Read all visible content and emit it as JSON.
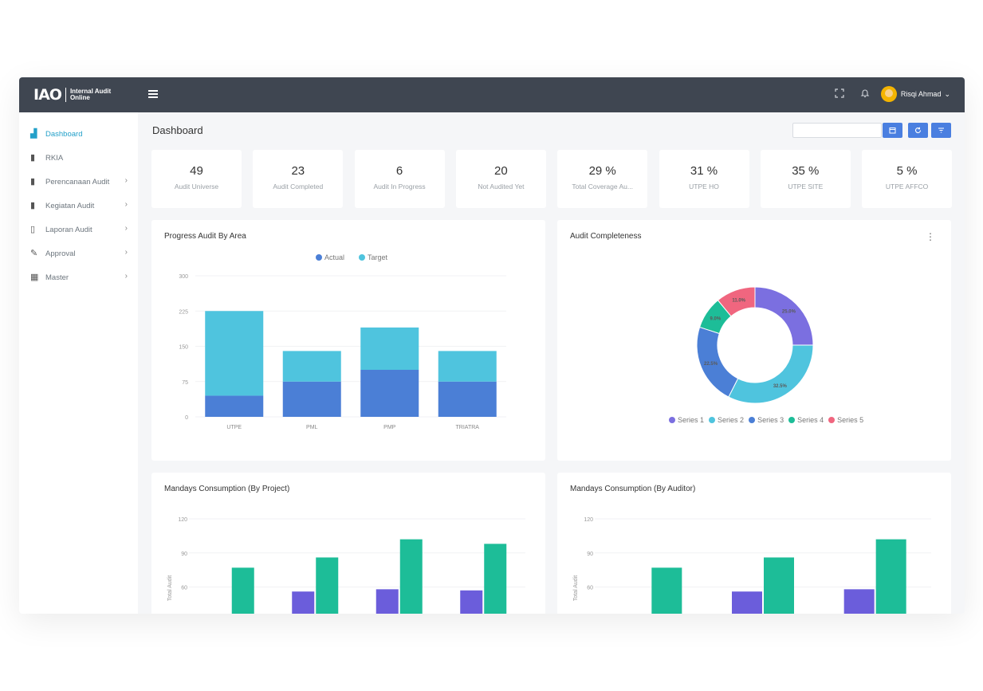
{
  "brand": {
    "mark": "IAO",
    "line1": "Internal Audit",
    "line2": "Online"
  },
  "topbar": {
    "icons": [
      "fullscreen-icon",
      "bell-icon"
    ],
    "user_name": "Risqi Ahmad",
    "user_chevron": "⌄"
  },
  "sidebar": {
    "items": [
      {
        "label": "Dashboard",
        "icon": "chart-area-icon",
        "active": true,
        "has_children": false
      },
      {
        "label": "RKIA",
        "icon": "file-icon",
        "active": false,
        "has_children": false
      },
      {
        "label": "Perencanaan Audit",
        "icon": "file-alt-icon",
        "active": false,
        "has_children": true
      },
      {
        "label": "Kegiatan Audit",
        "icon": "file-image-icon",
        "active": false,
        "has_children": true
      },
      {
        "label": "Laporan Audit",
        "icon": "file-text-icon",
        "active": false,
        "has_children": true
      },
      {
        "label": "Approval",
        "icon": "signature-icon",
        "active": false,
        "has_children": true
      },
      {
        "label": "Master",
        "icon": "grid-icon",
        "active": false,
        "has_children": true
      }
    ]
  },
  "page": {
    "title": "Dashboard",
    "date_placeholder": "",
    "buttons": [
      "calendar-icon",
      "refresh-icon",
      "filter-icon"
    ]
  },
  "stats": [
    {
      "value": "49",
      "label": "Audit Universe"
    },
    {
      "value": "23",
      "label": "Audit Completed"
    },
    {
      "value": "6",
      "label": "Audit In Progress"
    },
    {
      "value": "20",
      "label": "Not Audited Yet"
    },
    {
      "value": "29 %",
      "label": "Total Coverage Au..."
    },
    {
      "value": "31 %",
      "label": "UTPE HO"
    },
    {
      "value": "35 %",
      "label": "UTPE SITE"
    },
    {
      "value": "5 %",
      "label": "UTPE AFFCO"
    }
  ],
  "colors": {
    "actual": "#4b7fd6",
    "target": "#4fc4de",
    "purple": "#6b5ddb",
    "green": "#1dbd98",
    "pink": "#f0667f",
    "topbar": "#3f4651",
    "active": "#23a0c9"
  },
  "chart_data": [
    {
      "type": "bar",
      "title": "Progress Audit By Area",
      "categories": [
        "UTPE",
        "PML",
        "PMP",
        "TRIATRA"
      ],
      "series": [
        {
          "name": "Actual",
          "values": [
            45,
            75,
            100,
            75
          ]
        },
        {
          "name": "Target",
          "values": [
            180,
            65,
            90,
            65
          ]
        }
      ],
      "stacked": true,
      "ylim": [
        0,
        300
      ],
      "yticks": [
        "300",
        "225",
        "150",
        "75",
        "0"
      ],
      "legend": "top"
    },
    {
      "type": "pie",
      "title": "Audit Completeness",
      "donut": true,
      "series": [
        {
          "name": "Series 1",
          "value": 25.0,
          "label": "25.0%"
        },
        {
          "name": "Series 2",
          "value": 32.5,
          "label": "32.5%"
        },
        {
          "name": "Series 3",
          "value": 22.5,
          "label": "22.5%"
        },
        {
          "name": "Series 4",
          "value": 9.0,
          "label": "9.0%"
        },
        {
          "name": "Series 5",
          "value": 11.0,
          "label": "11.0%"
        }
      ],
      "legend": "bottom"
    },
    {
      "type": "bar",
      "title": "Mandays Consumption (By Project)",
      "ylabel": "Total Audit",
      "ylim": [
        0,
        120
      ],
      "yticks": [
        "120",
        "90",
        "60"
      ],
      "groups": 4,
      "series": [
        {
          "values": [
            34,
            56,
            58,
            57
          ]
        },
        {
          "values": [
            77,
            86,
            102,
            98
          ]
        }
      ]
    },
    {
      "type": "bar",
      "title": "Mandays Consumption (By Auditor)",
      "ylabel": "Total Audit",
      "ylim": [
        0,
        120
      ],
      "yticks": [
        "120",
        "90",
        "60"
      ],
      "groups": 3,
      "series": [
        {
          "values": [
            34,
            56,
            58
          ]
        },
        {
          "values": [
            77,
            86,
            102
          ]
        }
      ]
    }
  ]
}
